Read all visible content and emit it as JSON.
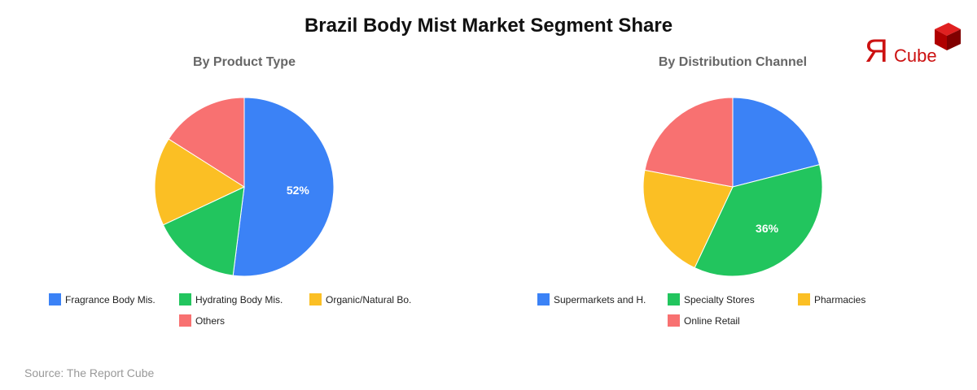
{
  "title": "Brazil Body Mist Market Segment Share",
  "source": "Source: The Report Cube",
  "logo": {
    "mark": "Я",
    "text": "Cube",
    "color": "#cc1111"
  },
  "charts": [
    {
      "subtitle": "By Product Type"
    },
    {
      "subtitle": "By Distribution Channel"
    }
  ],
  "chart_data": [
    {
      "type": "pie",
      "title": "By Product Type",
      "categories": [
        "Fragrance Body Mis.",
        "Hydrating Body Mis.",
        "Organic/Natural Bo.",
        "Others"
      ],
      "values": [
        52,
        16,
        16,
        16
      ],
      "colors": [
        "#3b82f6",
        "#22c55e",
        "#fbbf24",
        "#f87171"
      ],
      "data_labels": [
        "52%",
        "",
        "",
        ""
      ],
      "legend_position": "bottom"
    },
    {
      "type": "pie",
      "title": "By Distribution Channel",
      "categories": [
        "Supermarkets and H.",
        "Specialty Stores",
        "Pharmacies",
        "Online Retail"
      ],
      "values": [
        21,
        36,
        21,
        22
      ],
      "colors": [
        "#3b82f6",
        "#22c55e",
        "#fbbf24",
        "#f87171"
      ],
      "data_labels": [
        "",
        "36%",
        "",
        ""
      ],
      "legend_position": "bottom"
    }
  ]
}
